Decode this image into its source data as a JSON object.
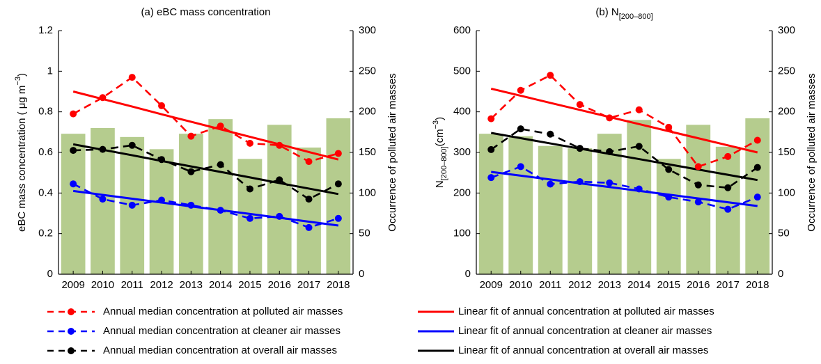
{
  "chart_data": [
    {
      "type": "bar-line",
      "title": [
        "(a) eBC mass concentration"
      ],
      "ylabel": [
        "eBC mass concentration ( μg m",
        "−3",
        ")"
      ],
      "ylabel_shift": [
        "none",
        "super",
        "none"
      ],
      "y2label": "Occurrence of polluted air masses",
      "y2label_color": "#3a8a12",
      "categories": [
        "2009",
        "2010",
        "2011",
        "2012",
        "2013",
        "2014",
        "2015",
        "2016",
        "2017",
        "2018"
      ],
      "ylim": [
        0,
        1.2
      ],
      "yticks": [
        0,
        0.2,
        0.4,
        0.6,
        0.8,
        1,
        1.2
      ],
      "y2lim": [
        0,
        300
      ],
      "y2ticks": [
        0,
        50,
        100,
        150,
        200,
        250,
        300
      ],
      "bars": {
        "axis": "y2",
        "color": "#b5cc8e",
        "values": [
          173,
          180,
          169,
          154,
          173,
          191,
          142,
          184,
          156,
          192
        ]
      },
      "series": [
        {
          "name": "Annual median concentration at polluted air masses",
          "color": "#ff0000",
          "style": "dashed",
          "values": [
            0.79,
            0.87,
            0.97,
            0.83,
            0.68,
            0.73,
            0.645,
            0.635,
            0.555,
            0.595
          ]
        },
        {
          "name": "Annual median concentration at cleaner air masses",
          "color": "#0000ff",
          "style": "dashed",
          "values": [
            0.445,
            0.37,
            0.34,
            0.365,
            0.34,
            0.315,
            0.275,
            0.285,
            0.23,
            0.275
          ]
        },
        {
          "name": "Annual median concentration at overall air masses",
          "color": "#000000",
          "style": "dashed",
          "values": [
            0.61,
            0.615,
            0.635,
            0.565,
            0.505,
            0.54,
            0.42,
            0.465,
            0.37,
            0.445
          ]
        },
        {
          "name": "Linear fit of annual concentration at polluted air masses",
          "color": "#ff0000",
          "style": "solid",
          "values": [
            0.9,
            0.863,
            0.826,
            0.788,
            0.751,
            0.714,
            0.677,
            0.64,
            0.602,
            0.565
          ]
        },
        {
          "name": "Linear fit of annual concentration at cleaner air masses",
          "color": "#0000ff",
          "style": "solid",
          "values": [
            0.41,
            0.391,
            0.372,
            0.353,
            0.334,
            0.316,
            0.297,
            0.278,
            0.259,
            0.24
          ]
        },
        {
          "name": "Linear fit of annual concentration at overall air masses",
          "color": "#000000",
          "style": "solid",
          "values": [
            0.64,
            0.613,
            0.586,
            0.558,
            0.531,
            0.504,
            0.477,
            0.449,
            0.422,
            0.395
          ]
        }
      ]
    },
    {
      "type": "bar-line",
      "title": [
        "(b) N",
        "[200–800]"
      ],
      "title_shift": [
        "none",
        "sub"
      ],
      "ylabel": [
        "N",
        "[200–800]",
        "(cm",
        "−3",
        ")"
      ],
      "ylabel_shift": [
        "none",
        "sub",
        "none",
        "super",
        "none"
      ],
      "y2label": "Occurrence of polluted air masses",
      "y2label_color": "#3a8a12",
      "categories": [
        "2009",
        "2010",
        "2011",
        "2012",
        "2013",
        "2014",
        "2015",
        "2016",
        "2017",
        "2018"
      ],
      "ylim": [
        0,
        600
      ],
      "yticks": [
        0,
        100,
        200,
        300,
        400,
        500,
        600
      ],
      "y2lim": [
        0,
        300
      ],
      "y2ticks": [
        0,
        50,
        100,
        150,
        200,
        250,
        300
      ],
      "bars": {
        "axis": "y2",
        "color": "#b5cc8e",
        "values": [
          173,
          170,
          158,
          155,
          173,
          190,
          142,
          184,
          157,
          192
        ]
      },
      "series": [
        {
          "color": "#ff0000",
          "style": "dashed",
          "values": [
            383,
            453,
            490,
            418,
            385,
            405,
            362,
            265,
            290,
            330
          ]
        },
        {
          "color": "#0000ff",
          "style": "dashed",
          "values": [
            238,
            265,
            222,
            228,
            225,
            210,
            190,
            178,
            160,
            190
          ]
        },
        {
          "color": "#000000",
          "style": "dashed",
          "values": [
            307,
            358,
            345,
            310,
            302,
            315,
            258,
            220,
            213,
            263
          ]
        },
        {
          "color": "#ff0000",
          "style": "solid",
          "values": [
            457,
            439.6,
            422.1,
            404.7,
            387.2,
            369.8,
            352.3,
            334.9,
            317.4,
            300
          ]
        },
        {
          "color": "#0000ff",
          "style": "solid",
          "values": [
            252,
            242.7,
            233.3,
            224,
            214.7,
            205.3,
            196,
            186.7,
            177.3,
            168
          ]
        },
        {
          "color": "#000000",
          "style": "solid",
          "values": [
            348,
            335.1,
            322.2,
            309.3,
            296.4,
            283.6,
            270.7,
            257.8,
            244.9,
            232
          ]
        }
      ]
    }
  ]
}
